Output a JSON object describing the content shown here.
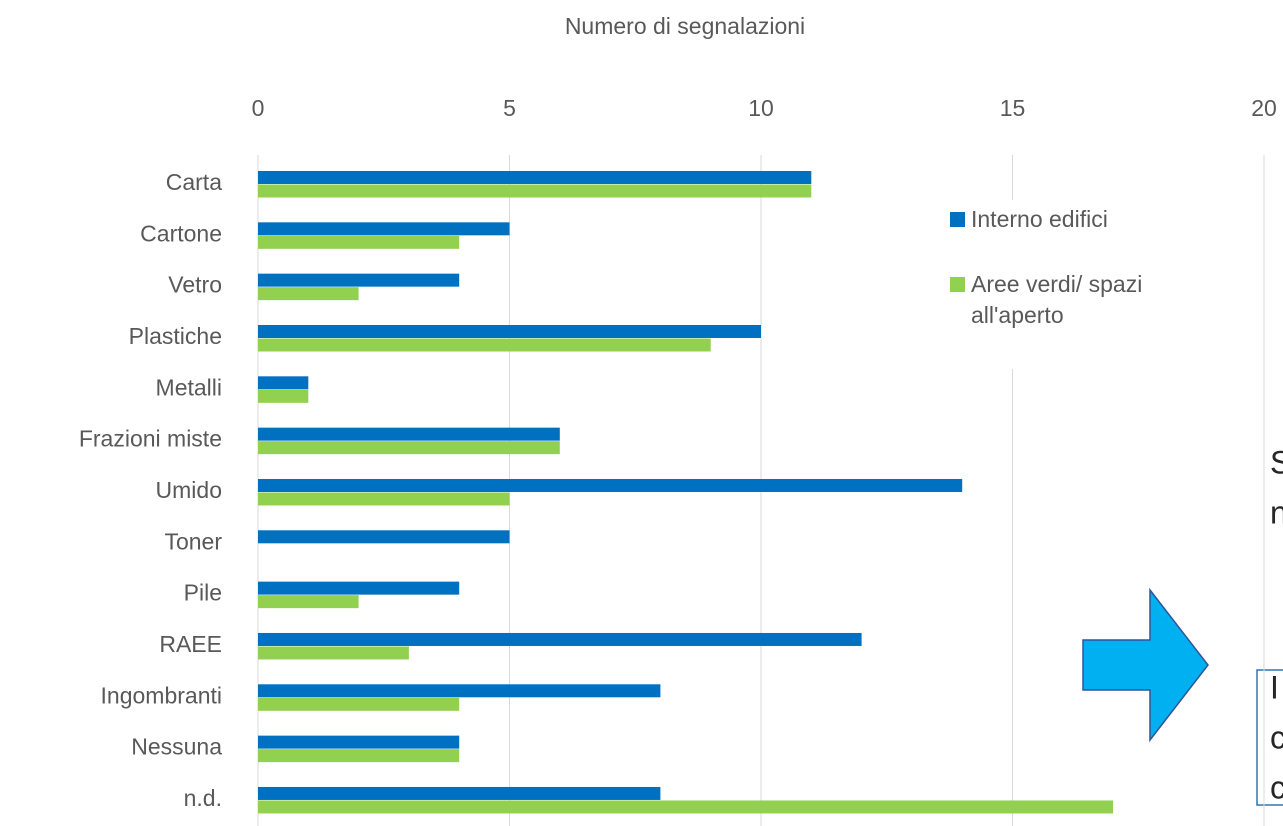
{
  "chart_data": {
    "type": "barh",
    "x_label": "Numero di segnalazioni",
    "categories": [
      "Carta",
      "Cartone",
      "Vetro",
      "Plastiche",
      "Metalli",
      "Frazioni miste",
      "Umido",
      "Toner",
      "Pile",
      "RAEE",
      "Ingombranti",
      "Nessuna",
      "n.d."
    ],
    "series": [
      {
        "name": "Interno edifici",
        "color": "#0070c0",
        "values": [
          11,
          5,
          4,
          10,
          1,
          6,
          14,
          5,
          4,
          12,
          8,
          4,
          8
        ]
      },
      {
        "name": "Aree verdi/ spazi all'aperto",
        "color": "#92d050",
        "values": [
          11,
          4,
          2,
          9,
          1,
          6,
          5,
          null,
          2,
          3,
          4,
          4,
          17
        ]
      }
    ],
    "xlim": [
      0,
      20
    ],
    "xticks": [
      0,
      5,
      10,
      15,
      20
    ],
    "grid": true,
    "legend": "upper right",
    "annotations": [
      "S",
      "n",
      "I",
      "c",
      "c"
    ]
  }
}
